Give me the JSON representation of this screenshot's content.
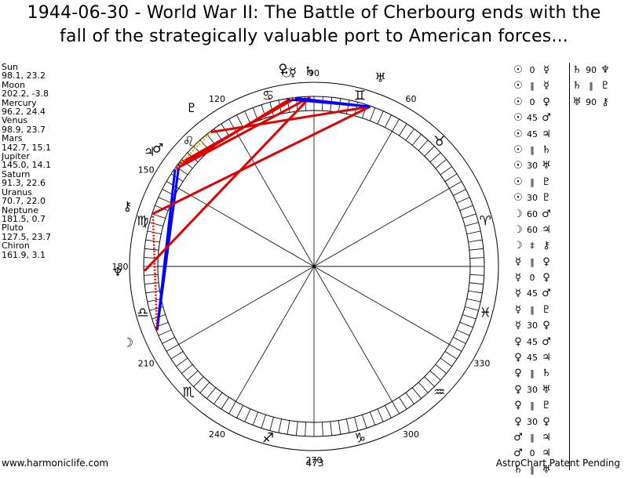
{
  "title": {
    "line1": "1944-06-30 - World War II: The Battle of Cherbourg ends with the",
    "line2": "fall of the strategically valuable port to American forces..."
  },
  "planets": [
    {
      "name": "Sun",
      "pos": "98.1, 23.2",
      "glyph": "☉",
      "lon": 98.1
    },
    {
      "name": "Moon",
      "pos": "202.2, -3.8",
      "glyph": "☽",
      "lon": 202.2
    },
    {
      "name": "Mercury",
      "pos": "96.2, 24.4",
      "glyph": "☿",
      "lon": 96.2
    },
    {
      "name": "Venus",
      "pos": "98.9, 23.7",
      "glyph": "♀",
      "lon": 98.9
    },
    {
      "name": "Mars",
      "pos": "142.7, 15.1",
      "glyph": "♂",
      "lon": 142.7
    },
    {
      "name": "Jupiter",
      "pos": "145.0, 14.1",
      "glyph": "♃",
      "lon": 145.0
    },
    {
      "name": "Saturn",
      "pos": "91.3, 22.6",
      "glyph": "♄",
      "lon": 91.3
    },
    {
      "name": "Uranus",
      "pos": "70.7, 22.0",
      "glyph": "♅",
      "lon": 70.7
    },
    {
      "name": "Neptune",
      "pos": "181.5, 0.7",
      "glyph": "♆",
      "lon": 181.5
    },
    {
      "name": "Pluto",
      "pos": "127.5, 23.7",
      "glyph": "♇",
      "lon": 127.5
    },
    {
      "name": "Chiron",
      "pos": "161.9, 3.1",
      "glyph": "⚷",
      "lon": 161.9
    }
  ],
  "wheel": {
    "degree_labels": [
      "60",
      "90",
      "120",
      "150",
      "180",
      "210",
      "240",
      "270",
      "300",
      "330"
    ],
    "zodiac_glyphs": [
      "♈",
      "♉",
      "♊",
      "♋",
      "♌",
      "♍",
      "♎",
      "♏",
      "♐",
      "♑",
      "♒",
      "♓"
    ]
  },
  "aspects_left": [
    {
      "p1": "☉",
      "angle": "0",
      "p2": "☿"
    },
    {
      "p1": "☉",
      "angle": "‖",
      "p2": "☿"
    },
    {
      "p1": "☉",
      "angle": "0",
      "p2": "♀"
    },
    {
      "p1": "☉",
      "angle": "45",
      "p2": "♂"
    },
    {
      "p1": "☉",
      "angle": "45",
      "p2": "♃"
    },
    {
      "p1": "☉",
      "angle": "‖",
      "p2": "♄"
    },
    {
      "p1": "☉",
      "angle": "30",
      "p2": "♅"
    },
    {
      "p1": "☉",
      "angle": "‖",
      "p2": "♇"
    },
    {
      "p1": "☉",
      "angle": "30",
      "p2": "♇"
    },
    {
      "p1": "☽",
      "angle": "60",
      "p2": "♂"
    },
    {
      "p1": "☽",
      "angle": "60",
      "p2": "♃"
    },
    {
      "p1": "☽",
      "angle": "‡",
      "p2": "⚷"
    },
    {
      "p1": "☿",
      "angle": "‖",
      "p2": "♀"
    },
    {
      "p1": "☿",
      "angle": "0",
      "p2": "♀"
    },
    {
      "p1": "☿",
      "angle": "45",
      "p2": "♂"
    },
    {
      "p1": "☿",
      "angle": "‖",
      "p2": "♇"
    },
    {
      "p1": "☿",
      "angle": "30",
      "p2": "♀"
    },
    {
      "p1": "♀",
      "angle": "45",
      "p2": "♂"
    },
    {
      "p1": "♀",
      "angle": "45",
      "p2": "♃"
    },
    {
      "p1": "♀",
      "angle": "‖",
      "p2": "♄"
    },
    {
      "p1": "♀",
      "angle": "30",
      "p2": "♅"
    },
    {
      "p1": "♀",
      "angle": "‖",
      "p2": "♇"
    },
    {
      "p1": "♀",
      "angle": "30",
      "p2": "♀"
    },
    {
      "p1": "♂",
      "angle": "‖",
      "p2": "♃"
    },
    {
      "p1": "♂",
      "angle": "0",
      "p2": "♃"
    },
    {
      "p1": "♄",
      "angle": "‖",
      "p2": "♅"
    }
  ],
  "aspects_right": [
    {
      "p1": "♄",
      "angle": "90",
      "p2": "♆"
    },
    {
      "p1": "♄",
      "angle": "‖",
      "p2": "♇"
    },
    {
      "p1": "♅",
      "angle": "90",
      "p2": "⚷"
    }
  ],
  "aspect_lines": [
    {
      "a": 202.2,
      "b": 142.7,
      "color": "#0000ff",
      "style": "solid"
    },
    {
      "a": 202.2,
      "b": 145.0,
      "color": "#0000ff",
      "style": "solid"
    },
    {
      "a": 145.0,
      "b": 98.1,
      "color": "#e00000",
      "style": "solid"
    },
    {
      "a": 142.7,
      "b": 96.2,
      "color": "#e00000",
      "style": "solid"
    },
    {
      "a": 145.0,
      "b": 91.3,
      "color": "#e00000",
      "style": "solid"
    },
    {
      "a": 161.9,
      "b": 70.7,
      "color": "#e00000",
      "style": "solid"
    },
    {
      "a": 181.5,
      "b": 91.3,
      "color": "#e00000",
      "style": "solid"
    },
    {
      "a": 127.5,
      "b": 70.7,
      "color": "#e00000",
      "style": "solid"
    },
    {
      "a": 98.9,
      "b": 70.7,
      "color": "#0000ff",
      "style": "solid"
    },
    {
      "a": 96.2,
      "b": 70.7,
      "color": "#0000ff",
      "style": "solid"
    },
    {
      "a": 202.2,
      "b": 161.9,
      "color": "#e00000",
      "style": "dotted"
    },
    {
      "a": 98.1,
      "b": 96.2,
      "color": "#ffa500",
      "style": "dotted"
    },
    {
      "a": 145.0,
      "b": 127.5,
      "color": "#ffa500",
      "style": "dotted"
    }
  ],
  "footer": {
    "left": "www.harmoniclife.com",
    "center": "473",
    "right": "AstroChart Patent Pending"
  }
}
